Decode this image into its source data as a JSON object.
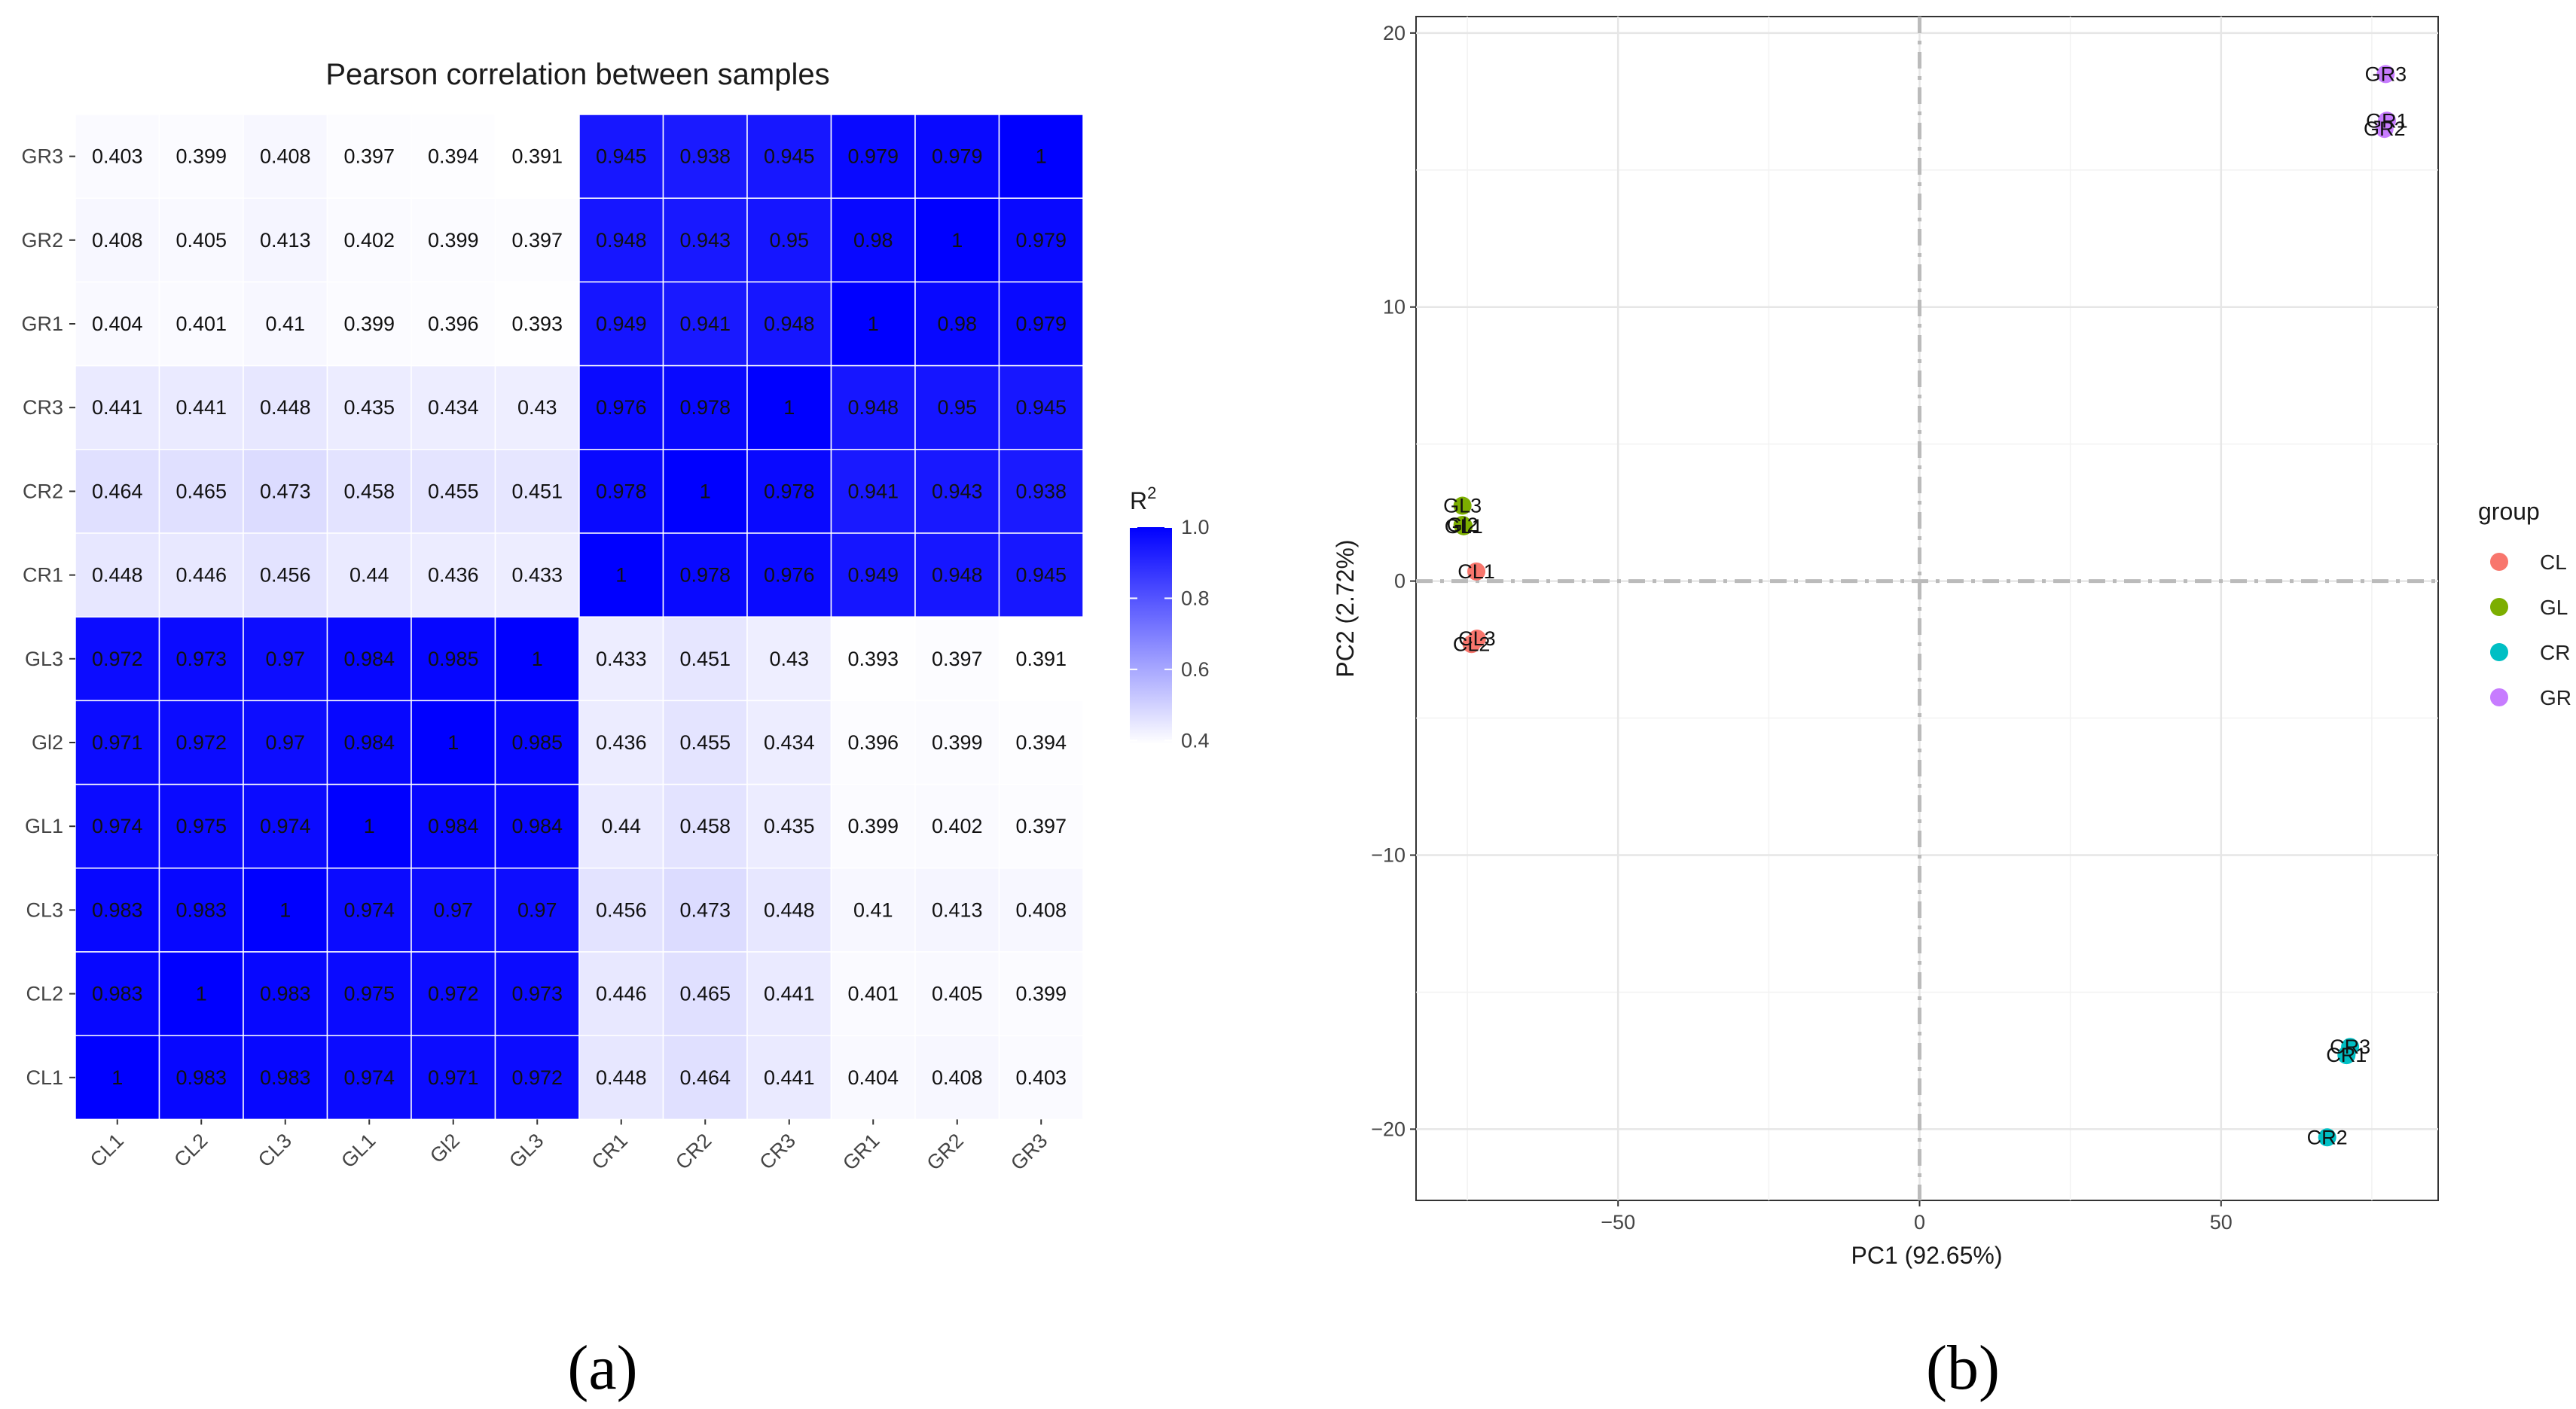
{
  "chart_data": [
    {
      "type": "heatmap",
      "title": "Pearson correlation between samples",
      "x_categories": [
        "CL1",
        "CL2",
        "CL3",
        "GL1",
        "Gl2",
        "GL3",
        "CR1",
        "CR2",
        "CR3",
        "GR1",
        "GR2",
        "GR3"
      ],
      "y_categories": [
        "GR3",
        "GR2",
        "GR1",
        "CR3",
        "CR2",
        "CR1",
        "GL3",
        "Gl2",
        "GL1",
        "CL3",
        "CL2",
        "CL1"
      ],
      "values": [
        [
          "0.403",
          "0.399",
          "0.408",
          "0.397",
          "0.394",
          "0.391",
          "0.945",
          "0.938",
          "0.945",
          "0.979",
          "0.979",
          "1"
        ],
        [
          "0.408",
          "0.405",
          "0.413",
          "0.402",
          "0.399",
          "0.397",
          "0.948",
          "0.943",
          "0.95",
          "0.98",
          "1",
          "0.979"
        ],
        [
          "0.404",
          "0.401",
          "0.41",
          "0.399",
          "0.396",
          "0.393",
          "0.949",
          "0.941",
          "0.948",
          "1",
          "0.98",
          "0.979"
        ],
        [
          "0.441",
          "0.441",
          "0.448",
          "0.435",
          "0.434",
          "0.43",
          "0.976",
          "0.978",
          "1",
          "0.948",
          "0.95",
          "0.945"
        ],
        [
          "0.464",
          "0.465",
          "0.473",
          "0.458",
          "0.455",
          "0.451",
          "0.978",
          "1",
          "0.978",
          "0.941",
          "0.943",
          "0.938"
        ],
        [
          "0.448",
          "0.446",
          "0.456",
          "0.44",
          "0.436",
          "0.433",
          "1",
          "0.978",
          "0.976",
          "0.949",
          "0.948",
          "0.945"
        ],
        [
          "0.972",
          "0.973",
          "0.97",
          "0.984",
          "0.985",
          "1",
          "0.433",
          "0.451",
          "0.43",
          "0.393",
          "0.397",
          "0.391"
        ],
        [
          "0.971",
          "0.972",
          "0.97",
          "0.984",
          "1",
          "0.985",
          "0.436",
          "0.455",
          "0.434",
          "0.396",
          "0.399",
          "0.394"
        ],
        [
          "0.974",
          "0.975",
          "0.974",
          "1",
          "0.984",
          "0.984",
          "0.44",
          "0.458",
          "0.435",
          "0.399",
          "0.402",
          "0.397"
        ],
        [
          "0.983",
          "0.983",
          "1",
          "0.974",
          "0.97",
          "0.97",
          "0.456",
          "0.473",
          "0.448",
          "0.41",
          "0.413",
          "0.408"
        ],
        [
          "0.983",
          "1",
          "0.983",
          "0.975",
          "0.972",
          "0.973",
          "0.446",
          "0.465",
          "0.441",
          "0.401",
          "0.405",
          "0.399"
        ],
        [
          "1",
          "0.983",
          "0.983",
          "0.974",
          "0.971",
          "0.972",
          "0.448",
          "0.464",
          "0.441",
          "0.404",
          "0.408",
          "0.403"
        ]
      ],
      "colorbar": {
        "title_base": "R",
        "title_sup": "2",
        "range": [
          0.39,
          1.0
        ],
        "ticks": [
          1.0,
          0.8,
          0.6,
          0.4
        ],
        "tick_labels": [
          "1.0",
          "0.8",
          "0.6",
          "0.4"
        ],
        "low_color": "#ffffff",
        "high_color": "#0000ff"
      },
      "panel_label": "(a)"
    },
    {
      "type": "scatter",
      "title": "",
      "xlabel": "PC1 (92.65%)",
      "ylabel": "PC2 (2.72%)",
      "xlim": [
        -83.5,
        86
      ],
      "ylim": [
        -22.6,
        20.6
      ],
      "xticks": [
        -50,
        0,
        50
      ],
      "xtick_labels": [
        "−50",
        "0",
        "50"
      ],
      "yticks": [
        20,
        10,
        0,
        -10,
        -20
      ],
      "ytick_labels": [
        "20",
        "10",
        "0",
        "−10",
        "−20"
      ],
      "reference_lines": {
        "x": 0,
        "y": 0
      },
      "groups": [
        {
          "name": "CL",
          "color": "#f8766d"
        },
        {
          "name": "GL",
          "color": "#7cae00"
        },
        {
          "name": "CR",
          "color": "#00bfc4"
        },
        {
          "name": "GR",
          "color": "#c77cff"
        }
      ],
      "legend_title": "group",
      "points": [
        {
          "label": "CL1",
          "group": "CL",
          "x": -73.5,
          "y": 0.35
        },
        {
          "label": "CL2",
          "group": "CL",
          "x": -74.3,
          "y": -2.3
        },
        {
          "label": "CL3",
          "group": "CL",
          "x": -73.4,
          "y": -2.1
        },
        {
          "label": "GL1",
          "group": "GL",
          "x": -75.6,
          "y": 2.0
        },
        {
          "label": "Gl2",
          "group": "GL",
          "x": -75.8,
          "y": 2.05
        },
        {
          "label": "GL3",
          "group": "GL",
          "x": -75.8,
          "y": 2.75
        },
        {
          "label": "CR1",
          "group": "CR",
          "x": 70.8,
          "y": -17.3
        },
        {
          "label": "CR2",
          "group": "CR",
          "x": 67.6,
          "y": -20.3
        },
        {
          "label": "CR3",
          "group": "CR",
          "x": 71.4,
          "y": -17.0
        },
        {
          "label": "GR1",
          "group": "GR",
          "x": 77.5,
          "y": 16.8
        },
        {
          "label": "GR2",
          "group": "GR",
          "x": 77.1,
          "y": 16.5
        },
        {
          "label": "GR3",
          "group": "GR",
          "x": 77.3,
          "y": 18.5
        }
      ],
      "panel_label": "(b)"
    }
  ]
}
